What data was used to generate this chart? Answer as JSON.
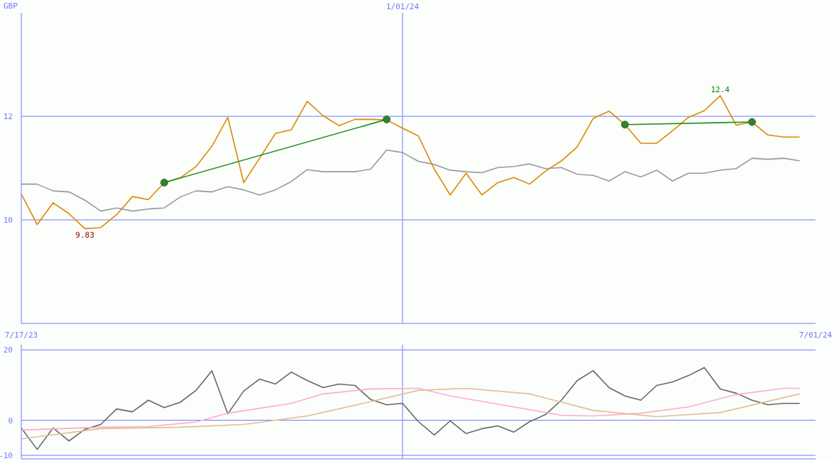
{
  "chart_data": [
    {
      "type": "line",
      "x": [
        "2023-07-17",
        "2023-07-24",
        "2023-07-31",
        "2023-08-07",
        "2023-08-14",
        "2023-08-21",
        "2023-08-28",
        "2023-09-04",
        "2023-09-11",
        "2023-09-18",
        "2023-09-25",
        "2023-10-02",
        "2023-10-09",
        "2023-10-16",
        "2023-10-23",
        "2023-10-30",
        "2023-11-06",
        "2023-11-13",
        "2023-11-20",
        "2023-11-27",
        "2023-12-04",
        "2023-12-11",
        "2023-12-18",
        "2023-12-25",
        "2024-01-01",
        "2024-01-08",
        "2024-01-15",
        "2024-01-22",
        "2024-01-29",
        "2024-02-05",
        "2024-02-12",
        "2024-02-19",
        "2024-02-26",
        "2024-03-04",
        "2024-03-11",
        "2024-03-18",
        "2024-03-25",
        "2024-04-01",
        "2024-04-08",
        "2024-04-15",
        "2024-04-22",
        "2024-04-29",
        "2024-05-06",
        "2024-05-13",
        "2024-05-20",
        "2024-05-27",
        "2024-06-03",
        "2024-06-10",
        "2024-06-17",
        "2024-06-24"
      ],
      "xlim": [
        "2023-07-17",
        "2024-07-01"
      ],
      "xticks": [
        {
          "value": "2023-07-17",
          "label": "7/17/23"
        },
        {
          "value": "2024-07-01",
          "label": "7/01/24"
        }
      ],
      "ylim": [
        8,
        14
      ],
      "yticks": [
        10,
        12
      ],
      "grid": "y",
      "series": [
        {
          "color": "#dd8800",
          "values": [
            10.5,
            9.91,
            10.33,
            10.12,
            9.83,
            9.85,
            10.1,
            10.45,
            10.39,
            10.72,
            10.81,
            11.03,
            11.42,
            11.98,
            10.72,
            11.19,
            11.67,
            11.74,
            12.29,
            12.01,
            11.82,
            11.94,
            11.94,
            11.93,
            11.77,
            11.62,
            10.98,
            10.48,
            10.9,
            10.48,
            10.72,
            10.82,
            10.69,
            10.94,
            11.14,
            11.41,
            11.96,
            12.1,
            11.84,
            11.48,
            11.48,
            11.72,
            11.98,
            12.11,
            12.4,
            11.83,
            11.89,
            11.64,
            11.6,
            11.6
          ]
        },
        {
          "color": "#999999",
          "values": [
            10.69,
            10.69,
            10.56,
            10.54,
            10.38,
            10.17,
            10.23,
            10.17,
            10.21,
            10.23,
            10.44,
            10.56,
            10.54,
            10.64,
            10.58,
            10.48,
            10.58,
            10.74,
            10.97,
            10.93,
            10.93,
            10.93,
            10.98,
            11.35,
            11.3,
            11.13,
            11.07,
            10.96,
            10.93,
            10.91,
            11.01,
            11.03,
            11.08,
            10.99,
            11.01,
            10.88,
            10.86,
            10.75,
            10.93,
            10.83,
            10.96,
            10.75,
            10.9,
            10.9,
            10.96,
            10.99,
            11.19,
            11.17,
            11.19,
            11.14
          ]
        },
        {
          "type": "line",
          "color": "#228b22",
          "marker": "circle",
          "x": [
            "2023-09-18",
            "2023-12-25"
          ],
          "values": [
            10.72,
            11.94
          ]
        },
        {
          "type": "line",
          "color": "#228b22",
          "marker": "circle",
          "x": [
            "2024-04-08",
            "2024-06-03"
          ],
          "values": [
            11.84,
            11.89
          ]
        }
      ],
      "ref_lines": [
        {
          "axis": "x",
          "value": "2024-01-01",
          "label": "1/01/24"
        }
      ],
      "annotations": [
        "GBP",
        {
          "text": "12.4",
          "x": "2024-05-20",
          "y": 12.4
        },
        {
          "text": "9.83",
          "x": "2023-08-14",
          "y": 9.83
        }
      ]
    },
    {
      "type": "line",
      "xlim": [
        "2023-07-17",
        "2024-07-01"
      ],
      "ylim": [
        -11,
        21.5
      ],
      "yticks": [
        20,
        0,
        -10
      ],
      "grid": "y",
      "tick_labels": "y",
      "x": [
        "2023-07-17",
        "2023-07-24",
        "2023-07-31",
        "2023-08-07",
        "2023-08-14",
        "2023-08-21",
        "2023-08-28",
        "2023-09-04",
        "2023-09-11",
        "2023-09-18",
        "2023-09-25",
        "2023-10-02",
        "2023-10-09",
        "2023-10-16",
        "2023-10-23",
        "2023-10-30",
        "2023-11-06",
        "2023-11-13",
        "2023-11-20",
        "2023-11-27",
        "2023-12-04",
        "2023-12-11",
        "2023-12-18",
        "2023-12-25",
        "2024-01-01",
        "2024-01-08",
        "2024-01-15",
        "2024-01-22",
        "2024-01-29",
        "2024-02-05",
        "2024-02-12",
        "2024-02-19",
        "2024-02-26",
        "2024-03-04",
        "2024-03-11",
        "2024-03-18",
        "2024-03-25",
        "2024-04-01",
        "2024-04-08",
        "2024-04-15",
        "2024-04-22",
        "2024-04-29",
        "2024-05-06",
        "2024-05-13",
        "2024-05-20",
        "2024-05-27",
        "2024-06-03",
        "2024-06-10",
        "2024-06-17",
        "2024-06-24"
      ],
      "series": [
        {
          "color": "#666666",
          "values": [
            -2.2,
            -8.3,
            -2.2,
            -5.9,
            -2.6,
            -1.2,
            3.2,
            2.4,
            5.7,
            3.6,
            5.1,
            8.5,
            14.1,
            1.8,
            8.3,
            11.7,
            10.3,
            13.7,
            11.3,
            9.3,
            10.3,
            9.9,
            5.9,
            4.4,
            4.8,
            -0.4,
            -4.2,
            -0.2,
            -3.8,
            -2.4,
            -1.6,
            -3.4,
            -0.4,
            1.6,
            5.7,
            11.3,
            14.1,
            9.3,
            6.9,
            5.7,
            9.9,
            10.9,
            12.7,
            15.0,
            8.9,
            7.7,
            5.7,
            4.4,
            4.8,
            4.8
          ]
        },
        {
          "color": "#ffaacc",
          "x": [
            "2023-07-17",
            "2023-08-21",
            "2023-09-11",
            "2023-10-02",
            "2023-10-16",
            "2023-11-13",
            "2023-11-27",
            "2023-12-18",
            "2024-01-08",
            "2024-01-22",
            "2024-02-19",
            "2024-03-11",
            "2024-03-25",
            "2024-04-15",
            "2024-05-06",
            "2024-05-27",
            "2024-06-17",
            "2024-06-24"
          ],
          "values": [
            -2.8,
            -2.0,
            -1.8,
            -0.5,
            2.0,
            4.8,
            7.5,
            8.9,
            9.1,
            6.9,
            3.8,
            1.4,
            1.2,
            2.0,
            3.8,
            7.3,
            9.1,
            9.1
          ]
        },
        {
          "color": "#e0c090",
          "x": [
            "2023-07-17",
            "2023-08-21",
            "2023-09-25",
            "2023-10-23",
            "2023-11-20",
            "2023-12-18",
            "2024-01-08",
            "2024-01-29",
            "2024-02-26",
            "2024-03-25",
            "2024-04-22",
            "2024-05-20",
            "2024-06-24"
          ],
          "values": [
            -5.3,
            -2.4,
            -2.0,
            -1.2,
            1.2,
            5.3,
            8.5,
            9.1,
            7.5,
            2.8,
            1.0,
            2.2,
            7.5
          ]
        }
      ],
      "ref_lines": [
        {
          "axis": "x",
          "value": "2024-01-01"
        }
      ]
    }
  ]
}
